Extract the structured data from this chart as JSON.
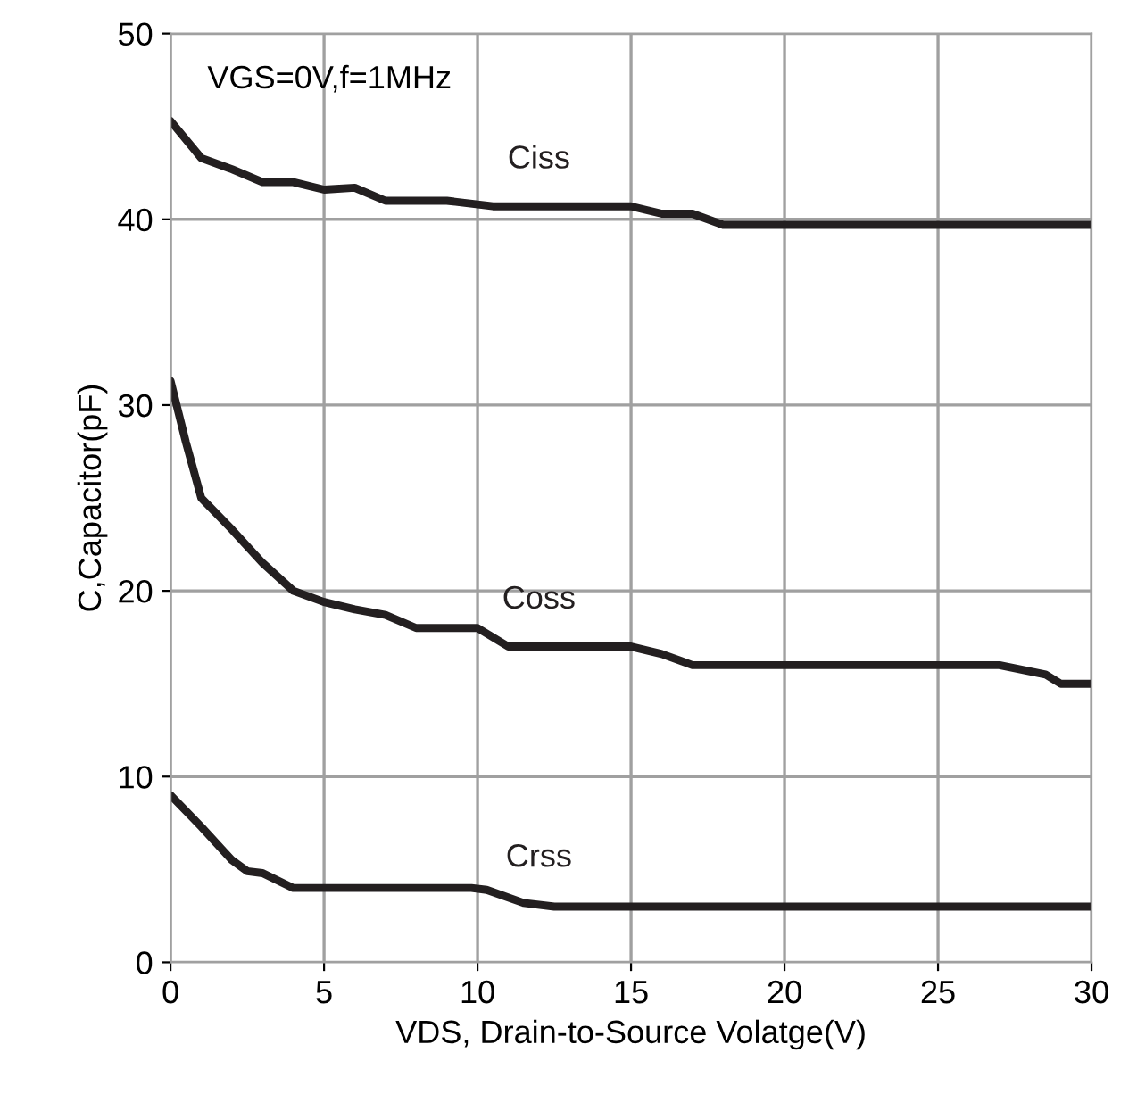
{
  "chart_data": {
    "type": "line",
    "xlabel": "VDS, Drain-to-Source Volatge(V)",
    "ylabel": "C,Capacitor(pF)",
    "annotations": [
      "VGS=0V,f=1MHz"
    ],
    "xlim": [
      0,
      30
    ],
    "ylim": [
      0,
      50
    ],
    "xticks": [
      0,
      5,
      10,
      15,
      20,
      25,
      30
    ],
    "yticks": [
      0,
      10,
      20,
      30,
      40,
      50
    ],
    "grid": true,
    "line_style": "solid",
    "marker": "none",
    "series": [
      {
        "name": "Ciss",
        "color": "#231f20",
        "x": [
          0,
          1,
          2,
          3,
          4,
          5,
          6,
          7,
          9,
          10.5,
          15,
          16,
          17,
          18,
          30
        ],
        "values": [
          45.3,
          43.3,
          42.7,
          42.0,
          42.0,
          41.6,
          41.7,
          41.0,
          41.0,
          40.7,
          40.7,
          40.3,
          40.3,
          39.7,
          39.7
        ]
      },
      {
        "name": "Coss",
        "color": "#231f20",
        "x": [
          0,
          0.5,
          1,
          2,
          3,
          4,
          5,
          6,
          7,
          8,
          10,
          11,
          15,
          16,
          17,
          26,
          27,
          28.5,
          29,
          30
        ],
        "values": [
          31.3,
          28,
          25,
          23.3,
          21.5,
          20,
          19.4,
          19.0,
          18.7,
          18.0,
          18.0,
          17.0,
          17.0,
          16.6,
          16.0,
          16.0,
          16.0,
          15.5,
          15.0,
          15.0
        ]
      },
      {
        "name": "Crss",
        "color": "#231f20",
        "x": [
          0,
          1,
          2,
          2.5,
          3,
          4,
          9.8,
          10.3,
          11.5,
          12.5,
          30
        ],
        "values": [
          9,
          7.3,
          5.5,
          4.9,
          4.8,
          4.0,
          4.0,
          3.9,
          3.2,
          3.0,
          3.0
        ]
      }
    ]
  }
}
